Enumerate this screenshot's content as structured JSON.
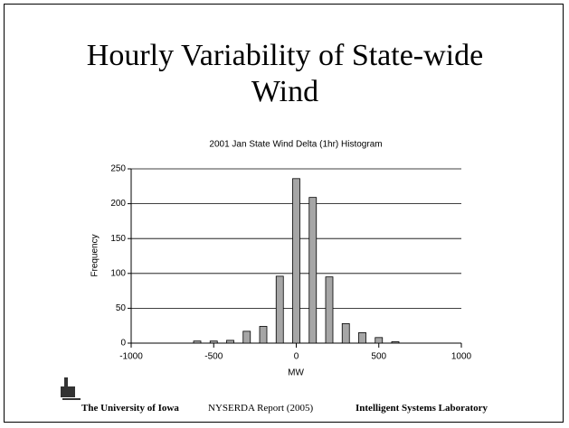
{
  "slide": {
    "title": "Hourly Variability of State-wide Wind",
    "footer": {
      "left": "The University of Iowa",
      "center": "NYSERDA Report (2005)",
      "right": "Intelligent Systems Laboratory"
    }
  },
  "chart_data": {
    "type": "bar",
    "title": "2001 Jan State Wind Delta (1hr) Histogram",
    "x_label": "MW",
    "y_label": "Frequency",
    "x": [
      -600,
      -500,
      -400,
      -300,
      -200,
      -100,
      0,
      100,
      200,
      300,
      400,
      500,
      600
    ],
    "values": [
      3,
      3,
      4,
      17,
      24,
      96,
      236,
      209,
      95,
      28,
      15,
      8,
      2
    ],
    "color": "#a6a6a6",
    "xlim": [
      -1000,
      1000
    ],
    "xticks": [
      -1000,
      -500,
      0,
      500,
      1000
    ],
    "ylim": [
      0,
      250
    ],
    "yticks": [
      0,
      50,
      100,
      150,
      200,
      250
    ],
    "grid": true
  }
}
